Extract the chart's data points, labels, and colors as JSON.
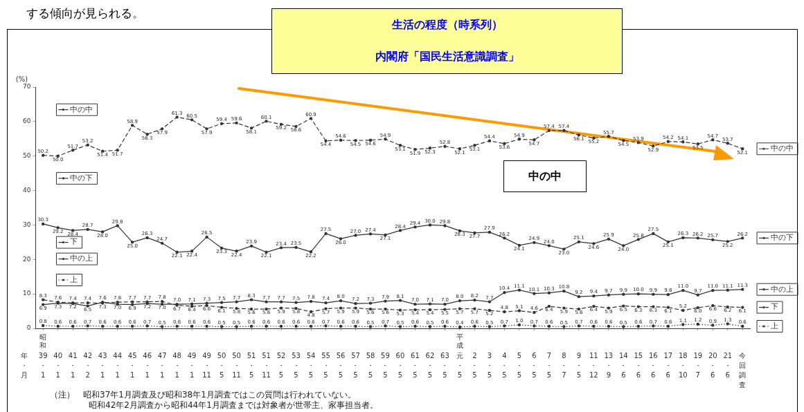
{
  "chart_data": {
    "type": "line",
    "title": "生活の程度（時系列）",
    "subtitle": "内閣府「国民生活意識調査」",
    "ylabel": "(%)",
    "xlabel": "年・月",
    "categories": [
      "39・1",
      "40・1",
      "41・1",
      "42・2",
      "43・1",
      "44・1",
      "45・1",
      "46・1",
      "47・1",
      "48・1",
      "49・1",
      "49・11",
      "50・5",
      "50・11",
      "51・5",
      "51・11",
      "52・5",
      "53・5",
      "54・5",
      "55・5",
      "56・5",
      "57・5",
      "58・5",
      "59・5",
      "60・5",
      "61・5",
      "62・5",
      "63・5",
      "元・5",
      "2・5",
      "3・5",
      "4・5",
      "5・5",
      "6・5",
      "7・5",
      "8・7",
      "9・5",
      "11・12",
      "13・9",
      "14・6",
      "15・6",
      "16・6",
      "17・6",
      "18・10",
      "19・7",
      "20・6",
      "21・6",
      "今回調査"
    ],
    "series": [
      {
        "name": "中の中",
        "color": "#333333",
        "line_style": "dashed",
        "values": [
          50.2,
          50.0,
          51.7,
          53.2,
          51.4,
          51.7,
          58.9,
          56.3,
          57.9,
          61.3,
          60.5,
          57.9,
          59.4,
          59.6,
          58.1,
          60.1,
          59.2,
          58.6,
          60.9,
          54.4,
          54.6,
          54.5,
          54.6,
          54.9,
          53.1,
          51.9,
          52.3,
          52.8,
          52.1,
          53.1,
          54.4,
          53.6,
          54.9,
          54.7,
          57.4,
          57.4,
          56.1,
          55.2,
          55.7,
          54.5,
          53.9,
          52.9,
          54.2,
          54.1,
          53.5,
          54.7,
          53.7,
          52.1
        ],
        "value_labels": [
          "50.2",
          "50.0",
          "51.7",
          "53.2",
          "51.4",
          "51.7",
          "58.9",
          "56.3",
          "57.9",
          "61.3",
          "60.5",
          "57.9",
          "59.4",
          "59.6",
          "58.1",
          "60.1",
          "59.2",
          "58.6",
          "60.9",
          "54.4",
          "54.6",
          "54.5",
          "54.6",
          "54.9",
          "53.1",
          "51.9",
          "52.3",
          "52.8",
          "52.1",
          "53.1",
          "54.4",
          "53.6",
          "54.9",
          "54.7",
          "57.4",
          "57.4",
          "56.1",
          "55.2",
          "55.7",
          "54.5",
          "53.9",
          "52.9",
          "54.2",
          "54.1",
          "53.5",
          "54.7",
          "53.7",
          "52.1"
        ]
      },
      {
        "name": "中の下",
        "color": "#333333",
        "line_style": "solid",
        "values": [
          30.3,
          29.2,
          28.4,
          28.7,
          28.0,
          29.8,
          25.0,
          26.3,
          24.7,
          22.1,
          22.4,
          26.5,
          23.3,
          22.4,
          23.9,
          22.1,
          23.4,
          23.5,
          22.2,
          27.5,
          26.0,
          27.0,
          27.4,
          27.1,
          28.4,
          29.4,
          30.0,
          29.8,
          28.3,
          27.7,
          27.9,
          26.2,
          24.1,
          24.9,
          24.0,
          23.0,
          25.1,
          24.6,
          25.9,
          24.0,
          25.8,
          27.5,
          25.1,
          26.3,
          26.2,
          25.7,
          25.2,
          26.2
        ],
        "value_labels": [
          "30.3",
          "29.2",
          "28.4",
          "28.7",
          "28.0",
          "29.8",
          "25.0",
          "26.3",
          "24.7",
          "22.1",
          "22.4",
          "26.5",
          "23.3",
          "22.4",
          "23.9",
          "22.1",
          "23.4",
          "23.5",
          "22.2",
          "27.5",
          "26.0",
          "27.0",
          "27.4",
          "27.1",
          "28.4",
          "29.4",
          "30.0",
          "29.8",
          "28.3",
          "27.7",
          "27.9",
          "26.2",
          "24.1",
          "24.9",
          "24.0",
          "23.0",
          "25.1",
          "24.6",
          "25.9",
          "24.0",
          "25.8",
          "27.5",
          "25.1",
          "26.3",
          "26.2",
          "25.7",
          "25.2",
          "26.2"
        ]
      },
      {
        "name": "中の上",
        "color": "#333333",
        "line_style": "solid",
        "values": [
          6.9,
          7.3,
          7.2,
          6.5,
          7.6,
          7.0,
          6.9,
          7.2,
          7.0,
          7.0,
          7.1,
          7.3,
          7.5,
          7.7,
          8.3,
          7.7,
          7.7,
          7.5,
          7.8,
          7.4,
          8.0,
          7.2,
          7.3,
          7.9,
          8.1,
          7.0,
          7.1,
          7.0,
          8.0,
          8.2,
          7.7,
          10.4,
          11.1,
          10.1,
          10.3,
          10.8,
          9.2,
          9.4,
          9.7,
          9.9,
          10.0,
          9.9,
          9.8,
          11.0,
          9.7,
          11.0,
          11.1,
          11.3
        ],
        "value_labels": [
          "6.9",
          "7.3",
          "7.2",
          "6.5",
          "7.6",
          "7.0",
          "6.9",
          "7.2",
          "7.0",
          "7.0",
          "7.1",
          "7.3",
          "7.5",
          "7.7",
          "8.3",
          "7.7",
          "7.7",
          "7.5",
          "7.8",
          "7.4",
          "8.0",
          "7.2",
          "7.3",
          "7.9",
          "8.1",
          "7.0",
          "7.1",
          "7.0",
          "8.0",
          "8.2",
          "7.7",
          "10.4",
          "11.1",
          "10.1",
          "10.3",
          "10.8",
          "9.2",
          "9.4",
          "9.7",
          "9.9",
          "10.0",
          "9.9",
          "9.8",
          "11.0",
          "9.7",
          "11.0",
          "11.1",
          "11.3"
        ]
      },
      {
        "name": "下",
        "color": "#333333",
        "line_style": "dashed",
        "values": [
          8.3,
          7.6,
          7.4,
          7.4,
          7.3,
          7.6,
          7.7,
          7.7,
          7.8,
          6.7,
          6.4,
          6.6,
          6.1,
          5.8,
          5.6,
          5.6,
          5.9,
          5.8,
          4.8,
          5.7,
          5.9,
          5.9,
          5.6,
          5.6,
          5.3,
          5.4,
          5.4,
          5.5,
          5.7,
          5.7,
          5.2,
          4.8,
          5.1,
          4.6,
          6.4,
          5.9,
          5.6,
          6.4,
          5.9,
          6.5,
          6.3,
          6.3,
          6.1,
          5.2,
          6.0,
          6.6,
          6.2,
          6.1
        ],
        "value_labels": [
          "8.3",
          "7.6",
          "7.4",
          "7.4",
          "7.3",
          "7.6",
          "7.7",
          "7.7",
          "7.8",
          "6.7",
          "6.4",
          "6.6",
          "6.1",
          "5.8",
          "5.6",
          "5.6",
          "5.9",
          "5.8",
          "4.8",
          "5.7",
          "5.9",
          "5.9",
          "5.6",
          "5.6",
          "5.3",
          "5.4",
          "5.4",
          "5.5",
          "5.7",
          "5.7",
          "5.2",
          "4.8",
          "5.1",
          "4.6",
          "6.4",
          "5.9",
          "5.6",
          "6.4",
          "5.9",
          "6.5",
          "6.3",
          "6.3",
          "6.1",
          "5.2",
          "6.0",
          "6.6",
          "6.2",
          "6.1"
        ]
      },
      {
        "name": "上",
        "color": "#333333",
        "line_style": "dotted",
        "values": [
          0.8,
          0.6,
          0.6,
          0.7,
          0.6,
          0.6,
          0.6,
          0.7,
          0.5,
          0.6,
          0.6,
          0.6,
          0.5,
          0.5,
          0.6,
          0.6,
          0.6,
          0.6,
          0.6,
          0.7,
          0.6,
          0.6,
          0.5,
          0.7,
          0.5,
          0.6,
          0.5,
          0.6,
          0.4,
          0.6,
          0.5,
          0.7,
          1.0,
          0.7,
          0.6,
          0.5,
          0.7,
          0.6,
          0.6,
          0.5,
          0.6,
          0.7,
          0.6,
          1.1,
          1.2,
          0.9,
          1.3,
          0.6
        ],
        "value_labels": [
          "0.8",
          "0.6",
          "0.6",
          "0.7",
          "0.6",
          "0.6",
          "0.6",
          "0.7",
          "0.5",
          "0.6",
          "0.6",
          "0.6",
          "0.5",
          "0.5",
          "0.6",
          "0.6",
          "0.6",
          "0.6",
          "0.6",
          "0.7",
          "0.6",
          "0.6",
          "0.5",
          "0.7",
          "0.5",
          "0.6",
          "0.5",
          "0.6",
          "0.4",
          "0.6",
          "0.5",
          "0.7",
          "1.0",
          "0.7",
          "0.6",
          "0.5",
          "0.7",
          "0.6",
          "0.6",
          "0.5",
          "0.6",
          "0.7",
          "0.6",
          "1.1",
          "1.2",
          "0.9",
          "1.3",
          "0.6"
        ]
      }
    ],
    "ylim": [
      0,
      70
    ],
    "yticks": [
      0,
      10,
      20,
      30,
      40,
      50,
      60,
      70
    ],
    "grid": false,
    "legend": "right",
    "marker": "circle",
    "annotations": [
      "する傾向が見られる。",
      "昭和",
      "平成",
      "中の中",
      "（注）　昭和37年1月調査及び昭和38年1月調査ではこの質問は行われていない。",
      "昭和42年2月調査から昭和44年1月調査までは対象者が世帯主、家事担当者。"
    ]
  }
}
